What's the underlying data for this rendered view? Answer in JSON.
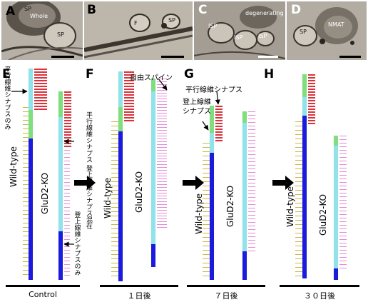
{
  "panels_top": [
    {
      "letter": "A",
      "labels": [
        "SP",
        "Whole",
        "SP"
      ]
    },
    {
      "letter": "B",
      "labels": [
        "F",
        "SP"
      ]
    },
    {
      "letter": "C",
      "labels": [
        "degenerating",
        "ISP",
        "ISP",
        "ISP"
      ]
    },
    {
      "letter": "D",
      "labels": [
        "SP",
        "NMAT"
      ]
    }
  ],
  "panels_bottom": [
    {
      "letter": "E",
      "group": "Control"
    },
    {
      "letter": "F",
      "group": "１日後"
    },
    {
      "letter": "G",
      "group": "７日後"
    },
    {
      "letter": "H",
      "group": "３０日後"
    }
  ],
  "labels": {
    "wildtype": "Wild-type",
    "glud2ko": "GluD2-KO",
    "pf_only": "平行線維シナプスのみ",
    "pf_cf_mixed": "平行線維シナプス 登上線維シナプス混在",
    "cf_only": "登上線維シナプスのみ",
    "free_spine": "自由スパイン",
    "pf_synapse": "平行線維シナプス",
    "cf_synapse": "登上線維 シナプス"
  },
  "colors": {
    "blue": "#1a1ae6",
    "cyan": "#8fe3ea",
    "green": "#7ee07a",
    "red": "#e0303a",
    "pink": "#e58ad8",
    "olive": "#c9b84a"
  }
}
